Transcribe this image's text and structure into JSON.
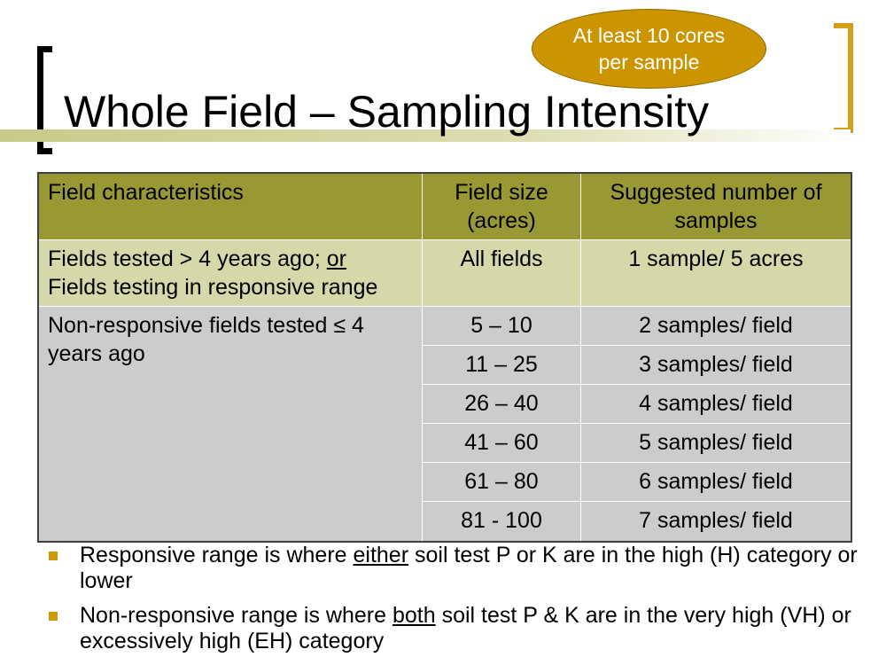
{
  "callout": {
    "line1": "At least 10 cores",
    "line2": "per sample"
  },
  "title": "Whole Field – Sampling Intensity",
  "table": {
    "headers": [
      "Field characteristics",
      "Field size (acres)",
      "Suggested number of samples"
    ],
    "row1": {
      "char_part1": "Fields tested > 4 years ago; ",
      "char_or": "or",
      "char_part2": "Fields testing in responsive range",
      "size": "All fields",
      "samples": "1 sample/ 5 acres"
    },
    "row2": {
      "char": "Non-responsive fields tested ≤ 4 years ago",
      "sizes": [
        "5 – 10",
        "11 – 25",
        "26 – 40",
        "41 – 60",
        "61 – 80",
        "81 - 100"
      ],
      "samples": [
        "2 samples/ field",
        "3 samples/ field",
        "4 samples/ field",
        "5 samples/ field",
        "6 samples/ field",
        "7 samples/ field"
      ]
    }
  },
  "bullets": [
    {
      "pre": "Responsive range is where ",
      "u": "either",
      "post": " soil test P or K are in the high (H) category or lower"
    },
    {
      "pre": "Non-responsive range is where ",
      "u": "both",
      "post": " soil test P & K are in the very high (VH) or excessively high (EH) category"
    }
  ],
  "colors": {
    "header": "#999933",
    "row1": "#d5d8a8",
    "row2": "#cccccc",
    "accent": "#cc9900"
  }
}
